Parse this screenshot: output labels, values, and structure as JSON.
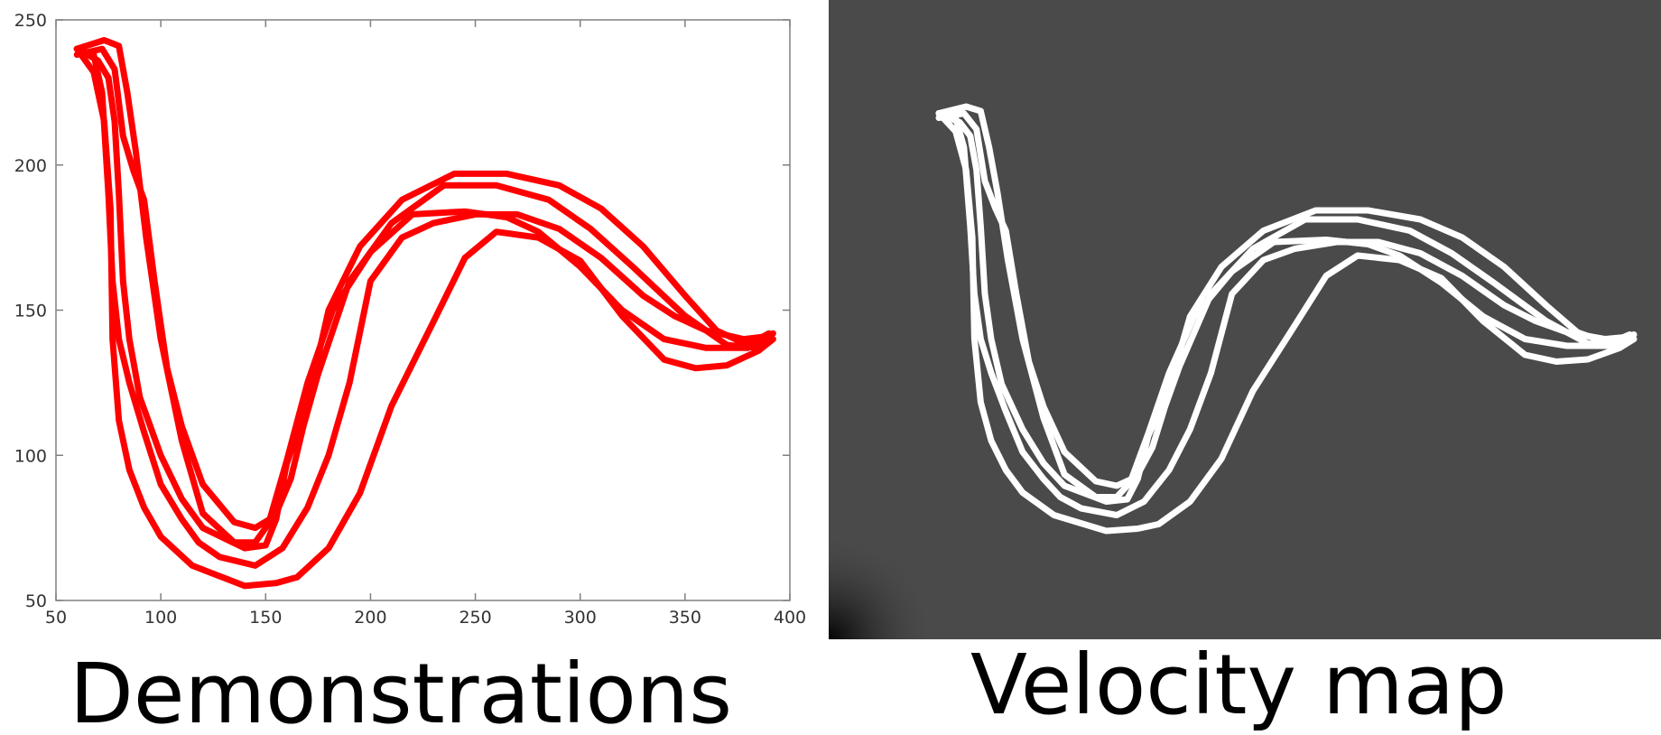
{
  "captions": {
    "left": "Demonstrations",
    "right": "Velocity map"
  },
  "colors": {
    "trajectory": "#ff0000",
    "velocity_background": "#4a4a4a",
    "velocity_trace": "#ffffff",
    "axis": "#808080"
  },
  "chart_data": [
    {
      "type": "line",
      "title": "",
      "xlabel": "",
      "ylabel": "",
      "xlim": [
        50,
        400
      ],
      "ylim": [
        50,
        250
      ],
      "xticks": [
        50,
        100,
        150,
        200,
        250,
        300,
        350,
        400
      ],
      "yticks": [
        50,
        100,
        150,
        200,
        250
      ],
      "grid": false,
      "series": [
        {
          "x": [
            60,
            70,
            75,
            78,
            80,
            82,
            85,
            90,
            100,
            110,
            120,
            140,
            150,
            155,
            160,
            170,
            180,
            195,
            215,
            240,
            265,
            290,
            310,
            330,
            350,
            365,
            380,
            390
          ],
          "y": [
            240,
            236,
            230,
            215,
            190,
            160,
            140,
            120,
            100,
            85,
            75,
            68,
            69,
            78,
            97,
            118,
            150,
            172,
            188,
            197,
            197,
            193,
            185,
            172,
            155,
            143,
            138,
            142
          ]
        },
        {
          "x": [
            60,
            73,
            80,
            84,
            88,
            93,
            100,
            110,
            120,
            135,
            145,
            155,
            162,
            168,
            175,
            190,
            210,
            235,
            260,
            285,
            305,
            325,
            350,
            370,
            385,
            390
          ],
          "y": [
            240,
            243,
            241,
            225,
            205,
            175,
            140,
            105,
            80,
            70,
            70,
            80,
            92,
            110,
            128,
            160,
            180,
            193,
            193,
            188,
            178,
            165,
            148,
            138,
            137,
            140
          ],
          "_note": ""
        },
        {
          "x": [
            60,
            72,
            78,
            82,
            87,
            92,
            97,
            103,
            110,
            120,
            135,
            145,
            152,
            160,
            170,
            182,
            200,
            220,
            245,
            265,
            280,
            300,
            320,
            340,
            360,
            380,
            392
          ],
          "y": [
            238,
            240,
            233,
            210,
            198,
            188,
            160,
            130,
            110,
            90,
            77,
            75,
            78,
            98,
            125,
            150,
            170,
            183,
            184,
            182,
            177,
            165,
            150,
            140,
            137,
            137,
            142
          ]
        },
        {
          "x": [
            60,
            68,
            73,
            76,
            77,
            80,
            85,
            92,
            100,
            115,
            140,
            155,
            165,
            180,
            195,
            210,
            230,
            245,
            260,
            280,
            300,
            320,
            340,
            355,
            370,
            385,
            392
          ],
          "y": [
            240,
            232,
            215,
            185,
            140,
            112,
            95,
            82,
            72,
            62,
            55,
            56,
            58,
            68,
            87,
            117,
            146,
            168,
            177,
            175,
            167,
            148,
            133,
            130,
            131,
            136,
            140
          ]
        },
        {
          "x": [
            60,
            68,
            72,
            75,
            77,
            80,
            85,
            92,
            100,
            110,
            118,
            128,
            145,
            158,
            170,
            180,
            190,
            200,
            215,
            230,
            250,
            270,
            290,
            310,
            330,
            345,
            360,
            378,
            390
          ],
          "y": [
            240,
            238,
            225,
            190,
            160,
            140,
            125,
            108,
            90,
            78,
            70,
            65,
            62,
            68,
            82,
            100,
            125,
            160,
            175,
            180,
            183,
            183,
            178,
            168,
            155,
            148,
            143,
            140,
            141
          ]
        }
      ]
    },
    {
      "type": "heatmap",
      "title": "",
      "background": "#4a4a4a",
      "trace_color": "#ffffff"
    }
  ]
}
